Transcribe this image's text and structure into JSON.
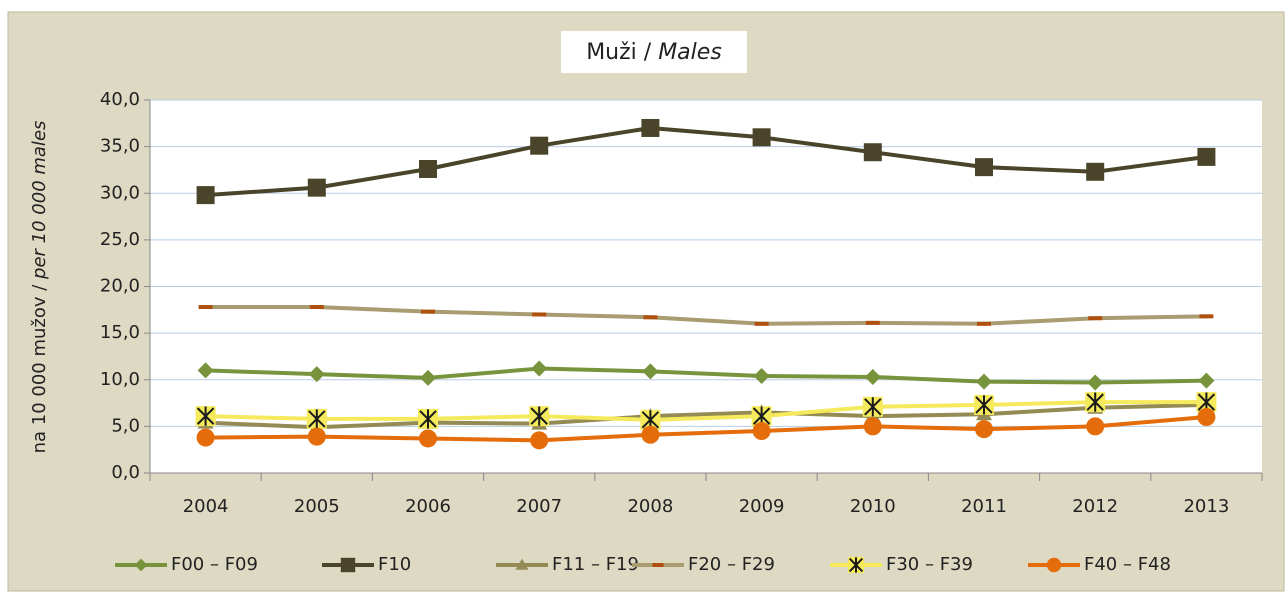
{
  "chart_data": {
    "type": "line",
    "title": [
      "Muži /",
      "Males"
    ],
    "y_label": [
      "na 10 000 mužov /",
      "per 10 000 males"
    ],
    "categories": [
      "2004",
      "2005",
      "2006",
      "2007",
      "2008",
      "2009",
      "2010",
      "2011",
      "2012",
      "2013"
    ],
    "series": [
      {
        "name": "F00 – F09",
        "color": "#77933c",
        "marker": "diamond",
        "marker_color": "#77933c",
        "values": [
          11.0,
          10.6,
          10.2,
          11.2,
          10.9,
          10.4,
          10.3,
          9.8,
          9.7,
          9.9
        ]
      },
      {
        "name": "F10",
        "color": "#4a452a",
        "marker": "square",
        "marker_color": "#4a452a",
        "values": [
          29.8,
          30.6,
          32.6,
          35.1,
          37.0,
          36.0,
          34.4,
          32.8,
          32.3,
          33.9
        ]
      },
      {
        "name": "F11 – F19",
        "color": "#948a54",
        "marker": "triangle",
        "marker_color": "#948a54",
        "values": [
          5.4,
          4.9,
          5.4,
          5.3,
          6.1,
          6.5,
          6.1,
          6.3,
          7.0,
          7.3
        ]
      },
      {
        "name": "F20 – F29",
        "color": "#a89c70",
        "marker": "dash",
        "marker_color": "#b0500f",
        "values": [
          17.8,
          17.8,
          17.3,
          17.0,
          16.7,
          16.0,
          16.1,
          16.0,
          16.6,
          16.8
        ]
      },
      {
        "name": "F30 – F39",
        "color": "#f4ea5c",
        "marker": "star",
        "marker_color": "#1a1a1a",
        "values": [
          6.1,
          5.8,
          5.8,
          6.1,
          5.7,
          6.1,
          7.1,
          7.3,
          7.6,
          7.6
        ]
      },
      {
        "name": "F40 – F48",
        "color": "#e46c0a",
        "marker": "circle",
        "marker_color": "#e46c0a",
        "values": [
          3.8,
          3.9,
          3.7,
          3.5,
          4.1,
          4.5,
          5.0,
          4.7,
          5.0,
          6.0
        ]
      }
    ],
    "ylim": [
      0,
      40
    ],
    "yticks": [
      {
        "value": 0,
        "label": "0,0"
      },
      {
        "value": 5,
        "label": "5,0"
      },
      {
        "value": 10,
        "label": "10,0"
      },
      {
        "value": 15,
        "label": "15,0"
      },
      {
        "value": 20,
        "label": "20,0"
      },
      {
        "value": 25,
        "label": "25,0"
      },
      {
        "value": 30,
        "label": "30,0"
      },
      {
        "value": 35,
        "label": "35,0"
      },
      {
        "value": 40,
        "label": "40,0"
      }
    ],
    "grid": true,
    "legend": "bottom"
  }
}
